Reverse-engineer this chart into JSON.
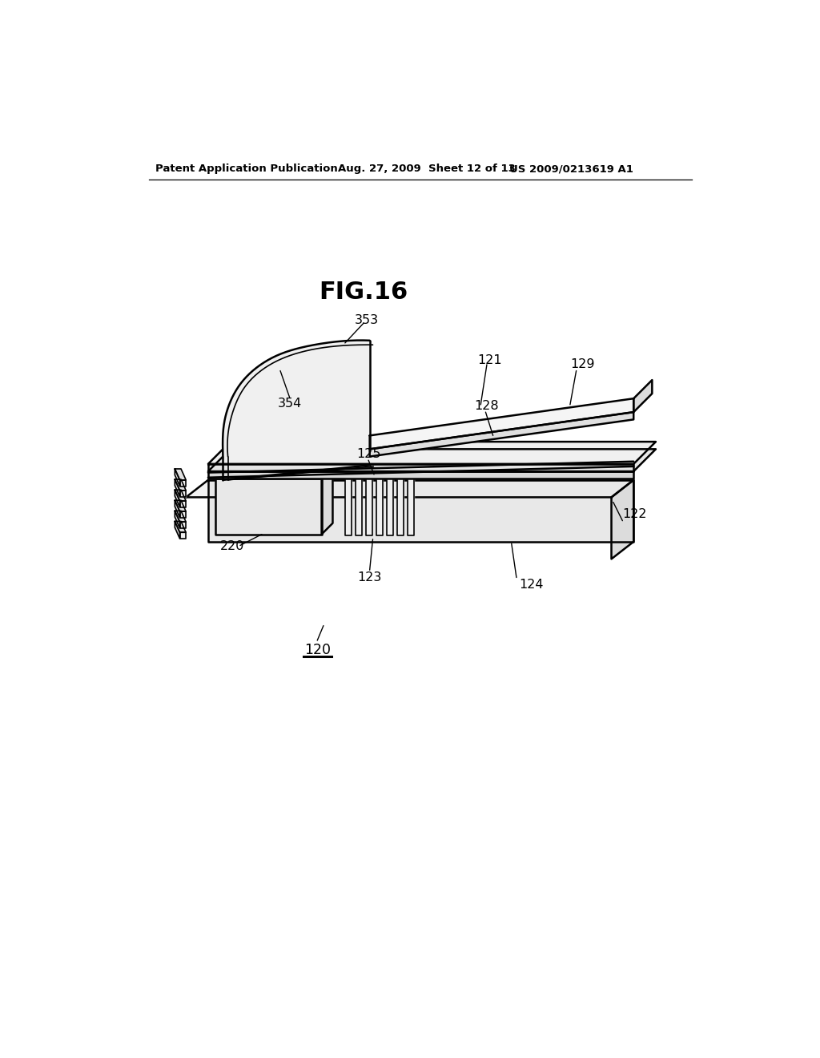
{
  "header_left": "Patent Application Publication",
  "header_mid": "Aug. 27, 2009  Sheet 12 of 13",
  "header_right": "US 2009/0213619 A1",
  "fig_title": "FIG.16",
  "background_color": "#ffffff",
  "line_color": "#000000",
  "lw_main": 1.8,
  "lw_thin": 1.2,
  "lw_label": 1.0
}
